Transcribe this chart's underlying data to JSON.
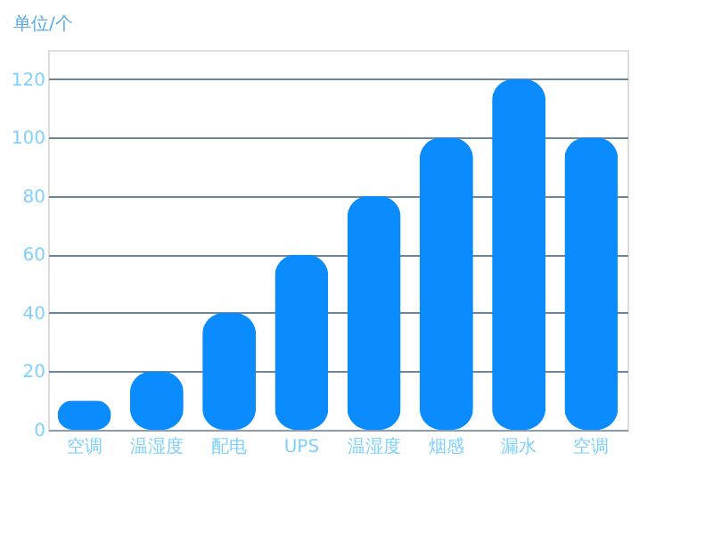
{
  "chart_data": {
    "type": "bar",
    "ylabel": "单位/个",
    "categories": [
      "空调",
      "温湿度",
      "配电",
      "UPS",
      "温湿度",
      "烟感",
      "漏水",
      "空调"
    ],
    "values": [
      10,
      20,
      40,
      60,
      80,
      100,
      120,
      100
    ],
    "color": "#0a8cff",
    "ylim": [
      0,
      130
    ],
    "yticks": [
      0,
      20,
      40,
      60,
      80,
      100,
      120
    ],
    "grid": "y"
  }
}
